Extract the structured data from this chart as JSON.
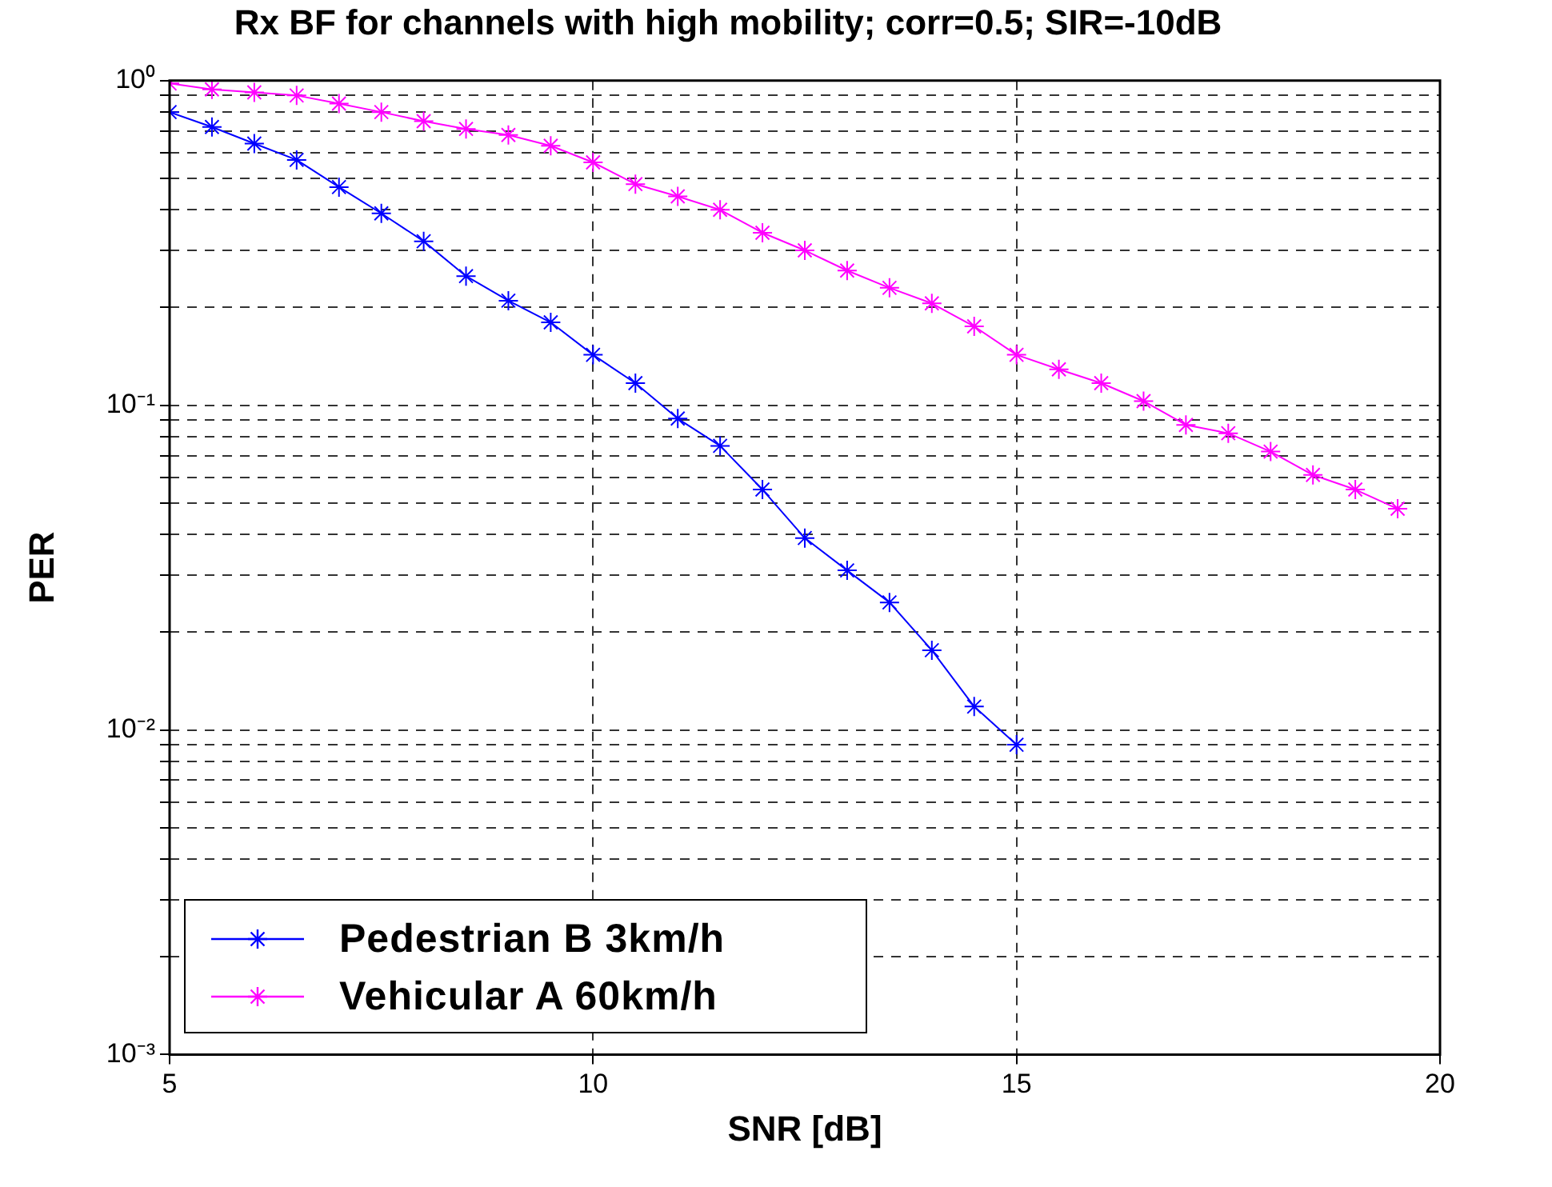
{
  "chart_data": {
    "type": "line",
    "title": "Rx BF for channels with high mobility; corr=0.5; SIR=-10dB",
    "xlabel": "SNR [dB]",
    "ylabel": "PER",
    "log": "y",
    "grid": true,
    "legend": "bottom left",
    "marker": "cross",
    "line_style": "solid",
    "xlim": [
      5,
      20
    ],
    "xticks": [
      5,
      10,
      15,
      20
    ],
    "ylim": [
      0.001,
      1
    ],
    "yticks": [
      {
        "value": 0.001,
        "label": "10⁻³"
      },
      {
        "value": 0.002,
        "label": null
      },
      {
        "value": 0.003,
        "label": null
      },
      {
        "value": 0.004,
        "label": null
      },
      {
        "value": 0.005,
        "label": null
      },
      {
        "value": 0.006,
        "label": null
      },
      {
        "value": 0.007,
        "label": null
      },
      {
        "value": 0.008,
        "label": null
      },
      {
        "value": 0.009,
        "label": null
      },
      {
        "value": 0.01,
        "label": "10⁻²"
      },
      {
        "value": 0.02,
        "label": null
      },
      {
        "value": 0.03,
        "label": null
      },
      {
        "value": 0.04,
        "label": null
      },
      {
        "value": 0.05,
        "label": null
      },
      {
        "value": 0.06,
        "label": null
      },
      {
        "value": 0.07,
        "label": null
      },
      {
        "value": 0.08,
        "label": null
      },
      {
        "value": 0.09,
        "label": null
      },
      {
        "value": 0.1,
        "label": "10⁻¹"
      },
      {
        "value": 0.2,
        "label": null
      },
      {
        "value": 0.3,
        "label": null
      },
      {
        "value": 0.4,
        "label": null
      },
      {
        "value": 0.5,
        "label": null
      },
      {
        "value": 0.6,
        "label": null
      },
      {
        "value": 0.7,
        "label": null
      },
      {
        "value": 0.8,
        "label": null
      },
      {
        "value": 0.9,
        "label": null
      },
      {
        "value": 1,
        "label": "10⁰"
      }
    ],
    "series": [
      {
        "name": "Pedestrian B 3km/h",
        "color": "#0000ff",
        "x": [
          5,
          5.5,
          6,
          6.5,
          7,
          7.5,
          8,
          8.5,
          9,
          9.5,
          10,
          10.5,
          11,
          11.5,
          12,
          12.5,
          13,
          13.5,
          14,
          14.5,
          15
        ],
        "values": [
          0.8,
          0.72,
          0.64,
          0.57,
          0.47,
          0.39,
          0.32,
          0.25,
          0.21,
          0.18,
          0.143,
          0.117,
          0.091,
          0.075,
          0.055,
          0.039,
          0.031,
          0.0247,
          0.0176,
          0.0118,
          0.009
        ]
      },
      {
        "name": "Vehicular A 60km/h",
        "color": "#ff00ff",
        "x": [
          5,
          5.5,
          6,
          6.5,
          7,
          7.5,
          8,
          8.5,
          9,
          9.5,
          10,
          10.5,
          11,
          11.5,
          12,
          12.5,
          13,
          13.5,
          14,
          14.5,
          15,
          15.5,
          16,
          16.5,
          17,
          17.5,
          18,
          18.5,
          19,
          19.5
        ],
        "values": [
          0.98,
          0.94,
          0.92,
          0.9,
          0.85,
          0.8,
          0.75,
          0.71,
          0.68,
          0.63,
          0.56,
          0.48,
          0.44,
          0.4,
          0.34,
          0.3,
          0.26,
          0.23,
          0.206,
          0.175,
          0.143,
          0.129,
          0.117,
          0.103,
          0.087,
          0.082,
          0.072,
          0.061,
          0.055,
          0.048
        ]
      }
    ]
  }
}
